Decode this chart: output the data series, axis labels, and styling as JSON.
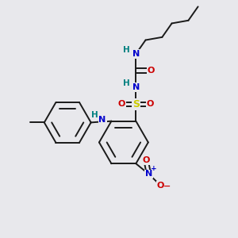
{
  "background_color": "#e8e8ec",
  "bond_color": "#1a1a1a",
  "atom_colors": {
    "N": "#0000cc",
    "O": "#cc0000",
    "S": "#cccc00",
    "H": "#008080",
    "C": "#1a1a1a"
  },
  "fig_width": 3.0,
  "fig_height": 3.0,
  "dpi": 100
}
